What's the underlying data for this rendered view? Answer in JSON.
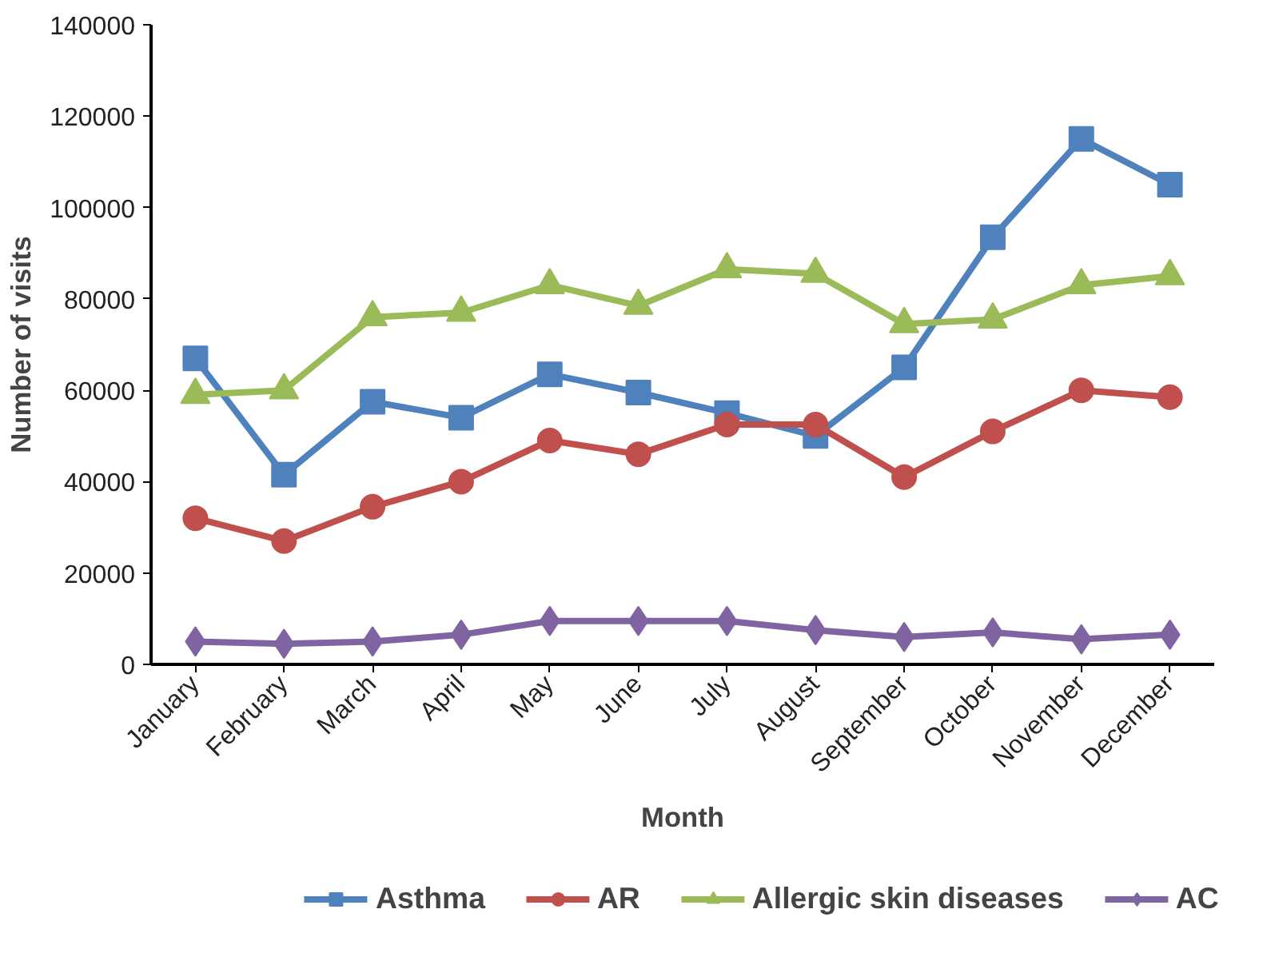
{
  "chart_data": {
    "type": "line",
    "xlabel": "Month",
    "ylabel": "Number of visits",
    "categories": [
      "January",
      "February",
      "March",
      "April",
      "May",
      "June",
      "July",
      "August",
      "September",
      "October",
      "November",
      "December"
    ],
    "series": [
      {
        "name": "Asthma",
        "color": "#4f81bd",
        "marker": "square",
        "values": [
          67000,
          41500,
          57500,
          54000,
          63500,
          59500,
          55000,
          50000,
          65000,
          93500,
          115000,
          105000
        ]
      },
      {
        "name": "AR",
        "color": "#c0504d",
        "marker": "circle",
        "values": [
          32000,
          27000,
          34500,
          40000,
          49000,
          46000,
          52500,
          52500,
          41000,
          51000,
          60000,
          58500
        ]
      },
      {
        "name": "Allergic skin diseases",
        "color": "#9bbb59",
        "marker": "triangle",
        "values": [
          59000,
          60000,
          76000,
          77000,
          83000,
          78500,
          86500,
          85500,
          74500,
          75500,
          83000,
          85000
        ]
      },
      {
        "name": "AC",
        "color": "#8064a2",
        "marker": "diamond",
        "values": [
          5000,
          4500,
          5000,
          6500,
          9500,
          9500,
          9500,
          7500,
          6000,
          7000,
          5500,
          6500
        ]
      }
    ],
    "ylim": [
      0,
      140000
    ],
    "yticks": [
      0,
      20000,
      40000,
      60000,
      80000,
      100000,
      120000,
      140000
    ],
    "grid": false,
    "legend": "bottom",
    "line_style": "solid"
  }
}
